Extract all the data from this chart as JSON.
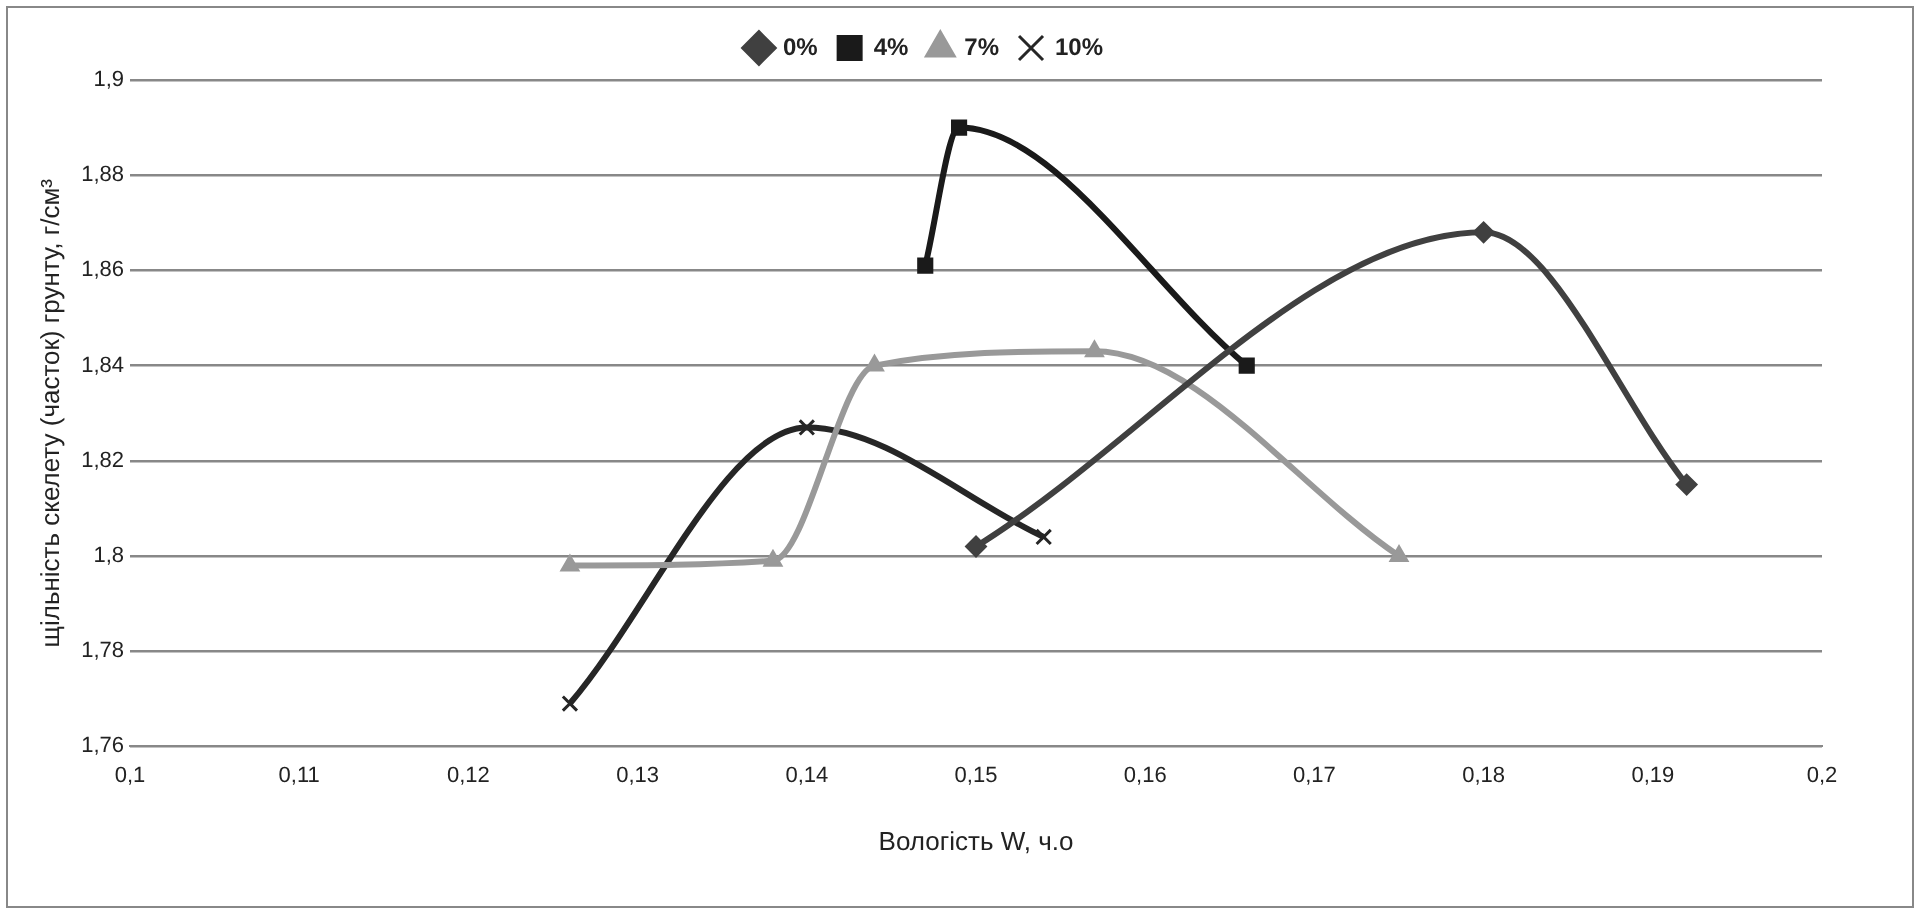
{
  "chart_data": {
    "type": "line",
    "xlabel": "Вологість W, ч.о",
    "ylabel": "щільність скелету (часток) грунту, г/см³",
    "legend": "top",
    "grid": "y",
    "line_style": "solid",
    "xlim": [
      0.1,
      0.2
    ],
    "xticks": [
      {
        "value": 0.1,
        "label": "0,1"
      },
      {
        "value": 0.11,
        "label": "0,11"
      },
      {
        "value": 0.12,
        "label": "0,12"
      },
      {
        "value": 0.13,
        "label": "0,13"
      },
      {
        "value": 0.14,
        "label": "0,14"
      },
      {
        "value": 0.15,
        "label": "0,15"
      },
      {
        "value": 0.16,
        "label": "0,16"
      },
      {
        "value": 0.17,
        "label": "0,17"
      },
      {
        "value": 0.18,
        "label": "0,18"
      },
      {
        "value": 0.19,
        "label": "0,19"
      },
      {
        "value": 0.2,
        "label": "0,2"
      }
    ],
    "ylim": [
      1.76,
      1.9
    ],
    "yticks": [
      {
        "value": 1.76,
        "label": "1,76"
      },
      {
        "value": 1.78,
        "label": "1,78"
      },
      {
        "value": 1.8,
        "label": "1,8"
      },
      {
        "value": 1.82,
        "label": "1,82"
      },
      {
        "value": 1.84,
        "label": "1,84"
      },
      {
        "value": 1.86,
        "label": "1,86"
      },
      {
        "value": 1.88,
        "label": "1,88"
      },
      {
        "value": 1.9,
        "label": "1,9"
      }
    ],
    "series": [
      {
        "name": "0%",
        "color": "#404040",
        "marker": "diamond",
        "x": [
          0.15,
          0.18,
          0.192
        ],
        "values": [
          1.802,
          1.868,
          1.815
        ]
      },
      {
        "name": "4%",
        "color": "#1a1a1a",
        "marker": "square",
        "x": [
          0.147,
          0.149,
          0.166
        ],
        "values": [
          1.861,
          1.89,
          1.84
        ]
      },
      {
        "name": "7%",
        "color": "#999999",
        "marker": "triangle",
        "x": [
          0.126,
          0.138,
          0.144,
          0.157,
          0.175
        ],
        "values": [
          1.798,
          1.799,
          1.84,
          1.843,
          1.8
        ]
      },
      {
        "name": "10%",
        "color": "#262626",
        "marker": "cross",
        "x": [
          0.126,
          0.14,
          0.154
        ],
        "values": [
          1.769,
          1.827,
          1.804
        ]
      }
    ]
  }
}
